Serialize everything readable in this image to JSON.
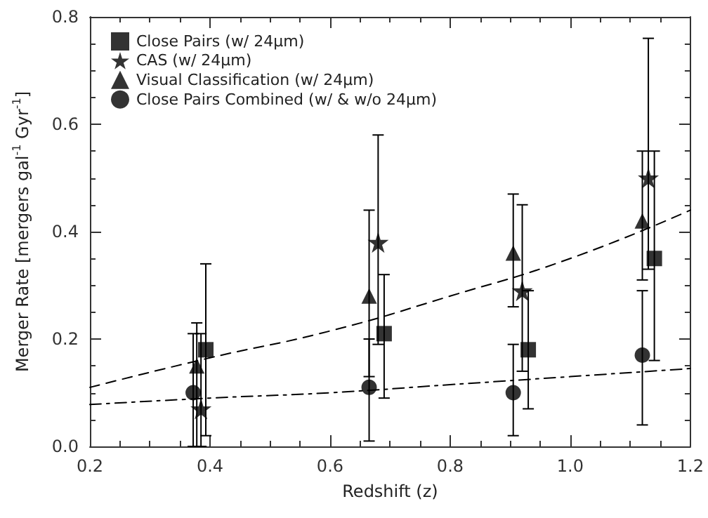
{
  "chart_data": {
    "type": "scatter",
    "xlabel": "Redshift (z)",
    "ylabel": "Merger Rate [mergers gal$^{-1}$ Gyr$^{-1}$]",
    "xlim": [
      0.2,
      1.2
    ],
    "xticks": [
      0.2,
      0.4,
      0.6,
      0.8,
      {
        "value": 1,
        "label": "1.0"
      },
      1.2
    ],
    "ylim": [
      0,
      0.8
    ],
    "yticks": [
      {
        "value": 0,
        "label": "0.0"
      },
      0.2,
      0.4,
      0.6,
      0.8
    ],
    "legend": "top left",
    "grid": false,
    "series": [
      {
        "name": "Close Pairs (w/ 24μm)",
        "color": "#000000",
        "marker": "square",
        "x": [
          0.393,
          0.69,
          0.93,
          1.14
        ],
        "values": [
          0.18,
          0.21,
          0.18,
          0.35
        ],
        "errors": [
          [
            0.02,
            0.34
          ],
          [
            0.09,
            0.32
          ],
          [
            0.07,
            0.29
          ],
          [
            0.16,
            0.55
          ]
        ]
      },
      {
        "name": "CAS (w/ 24μm)",
        "color": "#000000",
        "marker": "star",
        "x": [
          0.385,
          0.68,
          0.92,
          1.13
        ],
        "values": [
          0.07,
          0.38,
          0.29,
          0.5
        ],
        "errors": [
          [
            0,
            0.21
          ],
          [
            0.19,
            0.58
          ],
          [
            0.14,
            0.45
          ],
          [
            0.33,
            0.76
          ]
        ]
      },
      {
        "name": "Visual Classification (w/ 24μm)",
        "color": "#000000",
        "marker": "triangle",
        "x": [
          0.378,
          0.665,
          0.905,
          1.12
        ],
        "values": [
          0.15,
          0.28,
          0.36,
          0.42
        ],
        "errors": [
          [
            0,
            0.23
          ],
          [
            0.13,
            0.44
          ],
          [
            0.26,
            0.47
          ],
          [
            0.31,
            0.55
          ]
        ]
      },
      {
        "name": "Close Pairs Combined (w/ & w/o 24μm)",
        "color": "#000000",
        "marker": "circle",
        "x": [
          0.372,
          0.665,
          0.905,
          1.12
        ],
        "values": [
          0.1,
          0.11,
          0.1,
          0.17
        ],
        "errors": [
          [
            0,
            0.21
          ],
          [
            0.01,
            0.2
          ],
          [
            0.02,
            0.19
          ],
          [
            0.04,
            0.29
          ]
        ]
      },
      {
        "type": "line",
        "color": "#000000",
        "line_style": "dashed",
        "marker": "none",
        "x": [
          0.2,
          0.4,
          0.6,
          0.8,
          1.0,
          1.2
        ],
        "values": [
          0.11,
          0.165,
          0.215,
          0.28,
          0.35,
          0.44
        ]
      },
      {
        "type": "line",
        "color": "#000000",
        "line_style": "dashdot",
        "marker": "none",
        "x": [
          0.2,
          0.4,
          0.6,
          0.8,
          1.0,
          1.2
        ],
        "values": [
          0.078,
          0.09,
          0.1,
          0.115,
          0.13,
          0.145
        ]
      }
    ]
  }
}
